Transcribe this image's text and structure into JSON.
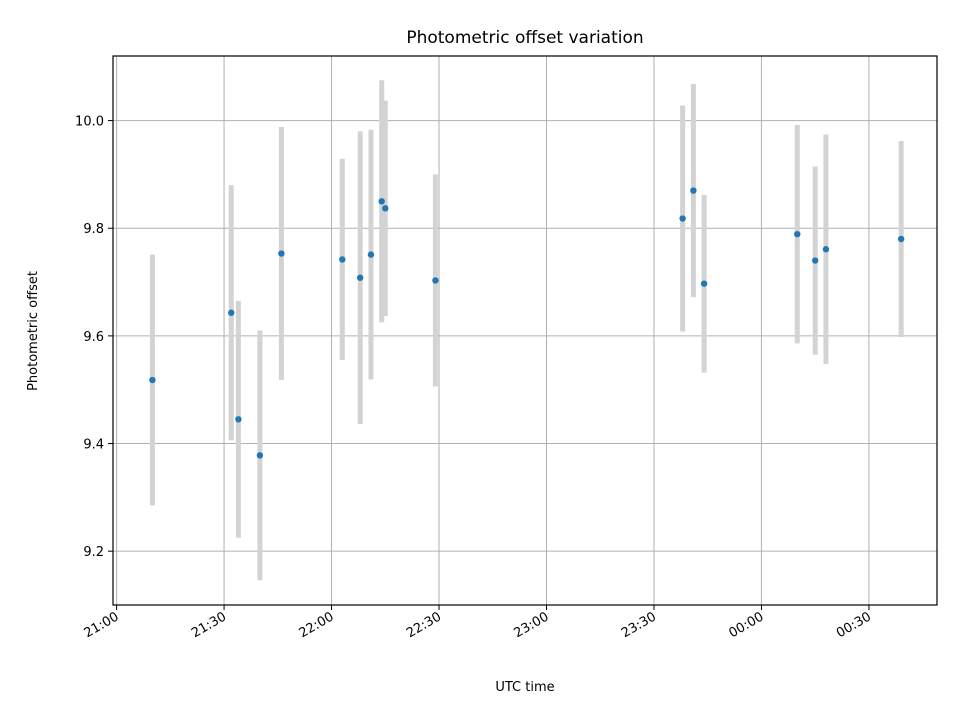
{
  "chart_data": {
    "type": "scatter",
    "title": "Photometric offset variation",
    "xlabel": "UTC time",
    "ylabel": "Photometric offset",
    "x_unit": "time of day (hours, continuing past midnight)",
    "xlim": [
      "20:59",
      "00:49"
    ],
    "ylim": [
      9.1,
      10.12
    ],
    "x_ticks": [
      "21:00",
      "21:30",
      "22:00",
      "22:30",
      "23:00",
      "23:30",
      "00:00",
      "00:30"
    ],
    "y_ticks": [
      "9.2",
      "9.4",
      "9.6",
      "9.8",
      "10.0"
    ],
    "grid": true,
    "colors": {
      "point": "#1f77b4",
      "errorbar": "#d3d3d3",
      "grid": "#b0b0b0"
    },
    "series": [
      {
        "points": [
          {
            "time": "21:10",
            "y": 9.518,
            "err": 0.233
          },
          {
            "time": "21:32",
            "y": 9.643,
            "err": 0.237
          },
          {
            "time": "21:34",
            "y": 9.445,
            "err": 0.22
          },
          {
            "time": "21:40",
            "y": 9.378,
            "err": 0.232
          },
          {
            "time": "21:46",
            "y": 9.753,
            "err": 0.235
          },
          {
            "time": "22:03",
            "y": 9.742,
            "err": 0.187
          },
          {
            "time": "22:08",
            "y": 9.708,
            "err": 0.272
          },
          {
            "time": "22:11",
            "y": 9.751,
            "err": 0.232
          },
          {
            "time": "22:14",
            "y": 9.85,
            "err": 0.225
          },
          {
            "time": "22:15",
            "y": 9.837,
            "err": 0.2
          },
          {
            "time": "22:29",
            "y": 9.703,
            "err": 0.197
          },
          {
            "time": "23:38",
            "y": 9.818,
            "err": 0.21
          },
          {
            "time": "23:41",
            "y": 9.87,
            "err": 0.198
          },
          {
            "time": "23:44",
            "y": 9.697,
            "err": 0.165
          },
          {
            "time": "00:10",
            "y": 9.789,
            "err": 0.203
          },
          {
            "time": "00:15",
            "y": 9.74,
            "err": 0.175
          },
          {
            "time": "00:18",
            "y": 9.761,
            "err": 0.213
          },
          {
            "time": "00:39",
            "y": 9.78,
            "err": 0.182
          }
        ]
      }
    ]
  }
}
